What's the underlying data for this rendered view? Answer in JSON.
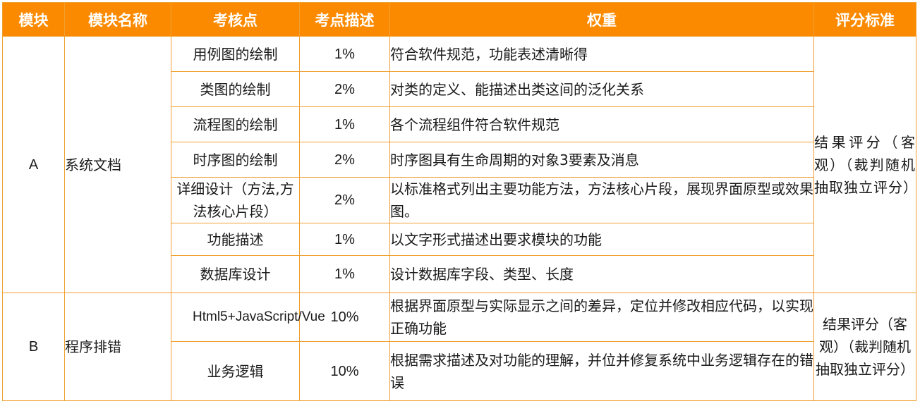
{
  "table": {
    "headers": [
      "模块",
      "模块名称",
      "考核点",
      "考点描述",
      "权重",
      "评分标准"
    ],
    "groups": [
      {
        "module": "A",
        "name": "系统文档",
        "standard": "结果评分（客观）（裁判随机抽取独立评分）",
        "rows": [
          {
            "point": "用例图的绘制",
            "weight": "1%",
            "desc": "符合软件规范，功能表述清晰得"
          },
          {
            "point": "类图的绘制",
            "weight": "2%",
            "desc": "对类的定义、能描述出类这间的泛化关系"
          },
          {
            "point": "流程图的绘制",
            "weight": "1%",
            "desc": "各个流程组件符合软件规范"
          },
          {
            "point": "时序图的绘制",
            "weight": "2%",
            "desc": "时序图具有生命周期的对象3要素及消息"
          },
          {
            "point": "详细设计（方法,方法核心片段）",
            "weight": "2%",
            "desc": "以标准格式列出主要功能方法，方法核心片段，展现界面原型或效果图。"
          },
          {
            "point": "功能描述",
            "weight": "1%",
            "desc": "以文字形式描述出要求模块的功能"
          },
          {
            "point": "数据库设计",
            "weight": "1%",
            "desc": "设计数据库字段、类型、长度"
          }
        ]
      },
      {
        "module": "B",
        "name": "程序排错",
        "standard": "结果评分（客观）（裁判随机抽取独立评分）",
        "rows": [
          {
            "point": "Html5+JavaScript/Vue",
            "weight": "10%",
            "desc": "根据界面原型与实际显示之间的差异，定位并修改相应代码，以实现正确功能"
          },
          {
            "point": "业务逻辑",
            "weight": "10%",
            "desc": "根据需求描述及对功能的理解，并位并修复系统中业务逻辑存在的错误"
          }
        ]
      }
    ]
  }
}
